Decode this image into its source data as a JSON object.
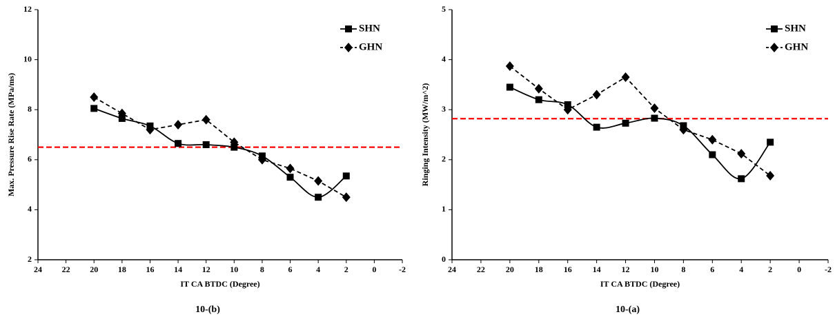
{
  "chart_data": [
    {
      "type": "line",
      "caption": "10-(b)",
      "x_label": "IT CA BTDC (Degree)",
      "y_label": "Max. Pressure Rise Rate (MPa/ms)",
      "x": [
        20,
        18,
        16,
        14,
        12,
        10,
        8,
        6,
        4,
        2
      ],
      "xlim": [
        24,
        -2
      ],
      "xticks": [
        24,
        22,
        20,
        18,
        16,
        14,
        12,
        10,
        8,
        6,
        4,
        2,
        0,
        -2
      ],
      "ylim": [
        2,
        12
      ],
      "yticks": [
        2,
        4,
        6,
        8,
        10,
        12
      ],
      "legend": "upper right",
      "reference_line": {
        "value": 6.5,
        "color": "#ff0000"
      },
      "series": [
        {
          "name": "SHN",
          "color": "#000000",
          "line_style": "solid",
          "smooth": true,
          "marker": "square",
          "values": [
            8.05,
            7.65,
            7.35,
            6.65,
            6.6,
            6.5,
            6.15,
            5.3,
            4.5,
            5.35
          ]
        },
        {
          "name": "GHN",
          "color": "#000000",
          "line_style": "dashed",
          "smooth": false,
          "marker": "diamond",
          "values": [
            8.5,
            7.85,
            7.2,
            7.4,
            7.6,
            6.7,
            6.0,
            5.65,
            5.15,
            4.5
          ]
        }
      ]
    },
    {
      "type": "line",
      "caption": "10-(a)",
      "x_label": "IT CA BTDC (Degree)",
      "y_label": "Ringing Intensity (MW/m^2)",
      "x": [
        20,
        18,
        16,
        14,
        12,
        10,
        8,
        6,
        4,
        2
      ],
      "xlim": [
        24,
        -2
      ],
      "xticks": [
        24,
        22,
        20,
        18,
        16,
        14,
        12,
        10,
        8,
        6,
        4,
        2,
        0,
        -2
      ],
      "ylim": [
        0,
        5
      ],
      "yticks": [
        0,
        1,
        2,
        3,
        4,
        5
      ],
      "legend": "upper right",
      "reference_line": {
        "value": 2.82,
        "color": "#ff0000"
      },
      "series": [
        {
          "name": "SHN",
          "color": "#000000",
          "line_style": "solid",
          "smooth": true,
          "marker": "square",
          "values": [
            3.45,
            3.2,
            3.1,
            2.65,
            2.73,
            2.83,
            2.68,
            2.1,
            1.62,
            2.35
          ]
        },
        {
          "name": "GHN",
          "color": "#000000",
          "line_style": "dashed",
          "smooth": false,
          "marker": "diamond",
          "values": [
            3.87,
            3.42,
            3.0,
            3.3,
            3.65,
            3.03,
            2.6,
            2.4,
            2.12,
            1.68
          ]
        }
      ]
    }
  ]
}
